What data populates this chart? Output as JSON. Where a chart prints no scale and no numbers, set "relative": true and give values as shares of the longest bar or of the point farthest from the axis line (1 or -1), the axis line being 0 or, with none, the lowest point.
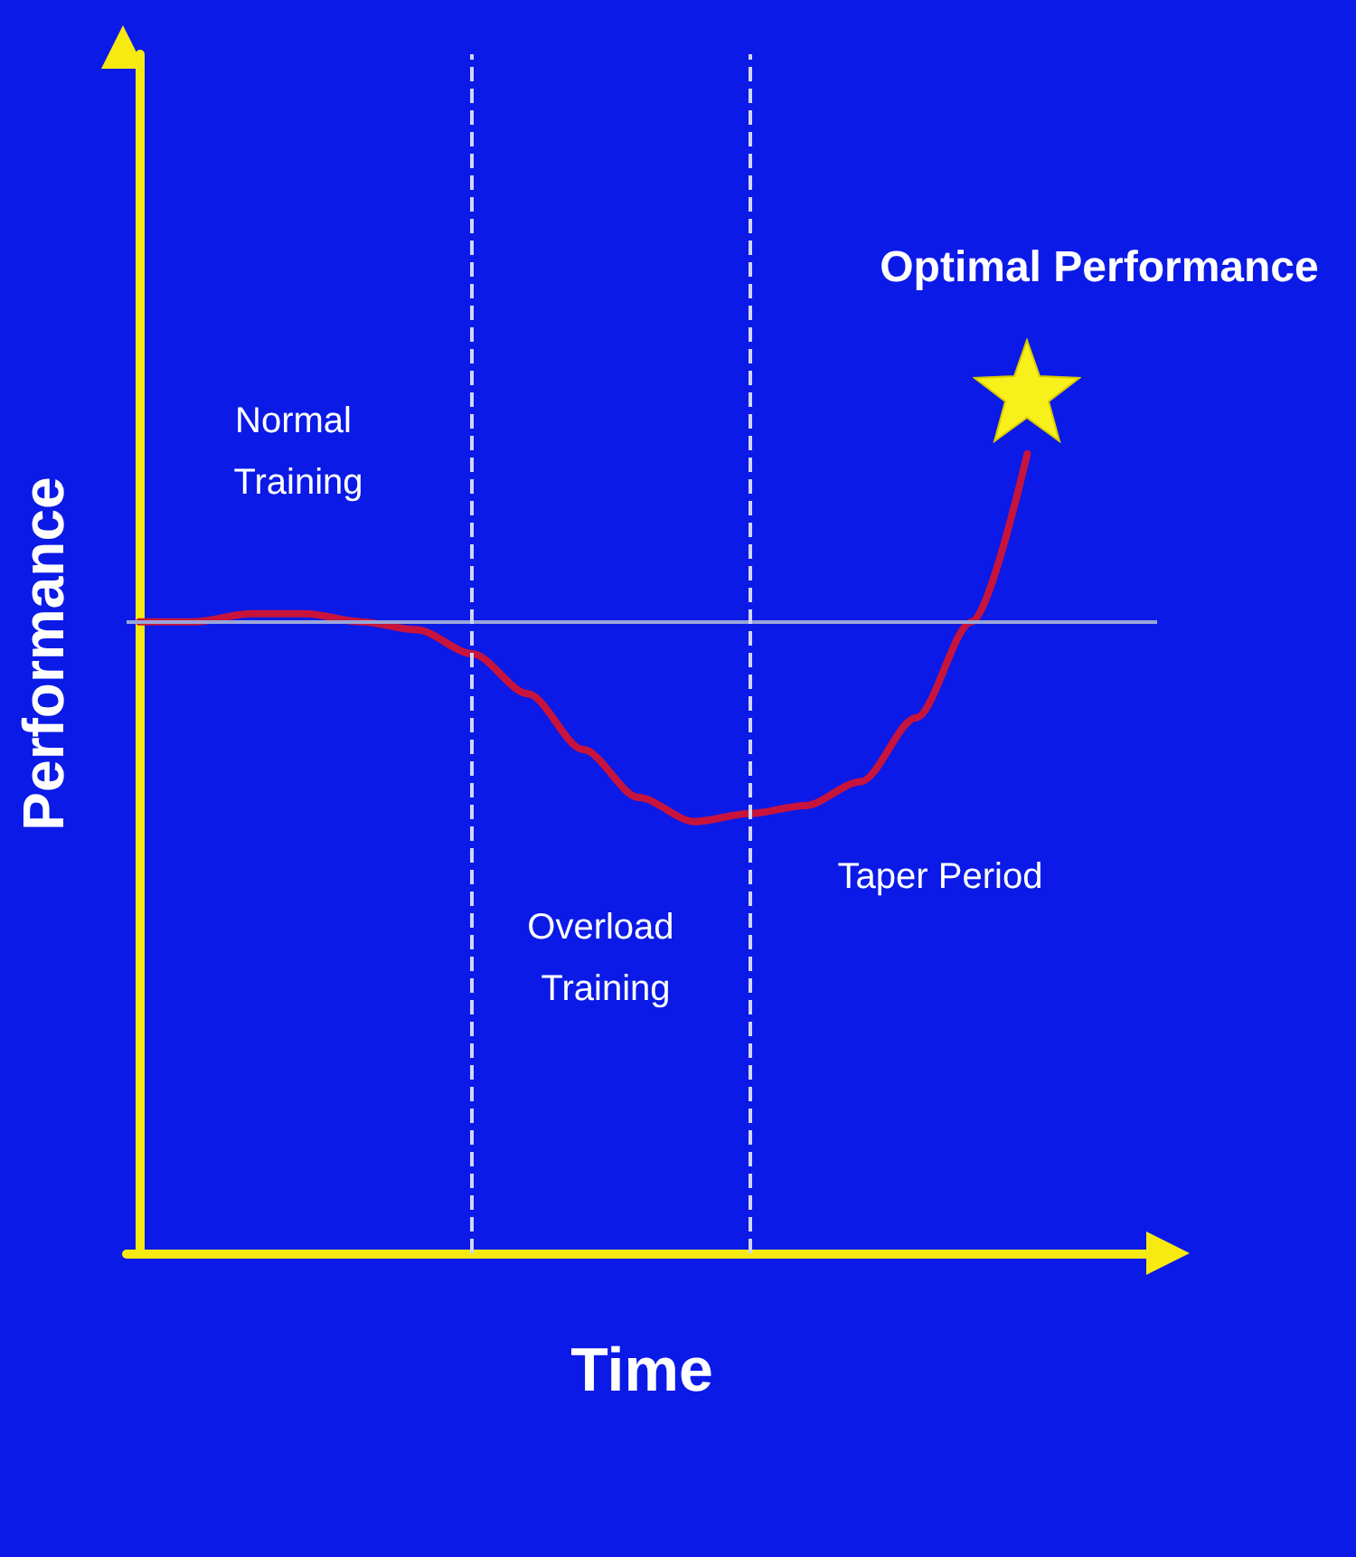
{
  "chart_data": {
    "type": "line",
    "relative": true,
    "xlabel": "Time",
    "ylabel": "Performance",
    "categories": [
      null,
      null,
      null,
      null,
      null,
      null,
      null,
      null,
      null,
      null,
      null,
      null,
      null,
      null,
      null,
      null,
      null
    ],
    "series": [
      {
        "color": "#c8143c",
        "values": [
          0.79,
          0.79,
          0.8,
          0.8,
          0.79,
          0.78,
          0.75,
          0.7,
          0.63,
          0.57,
          0.54,
          0.55,
          0.56,
          0.59,
          0.67,
          0.79,
          1.0
        ]
      }
    ],
    "ref_lines": [
      {
        "axis": "y",
        "value": 0.79,
        "color": "#9aa6d8",
        "line_style": "solid"
      }
    ],
    "annotations": [
      "Normal Training",
      "Overload Training",
      "Taper Period",
      "Optimal Performance"
    ],
    "marker": "none",
    "line_style": "solid",
    "grid": false
  }
}
